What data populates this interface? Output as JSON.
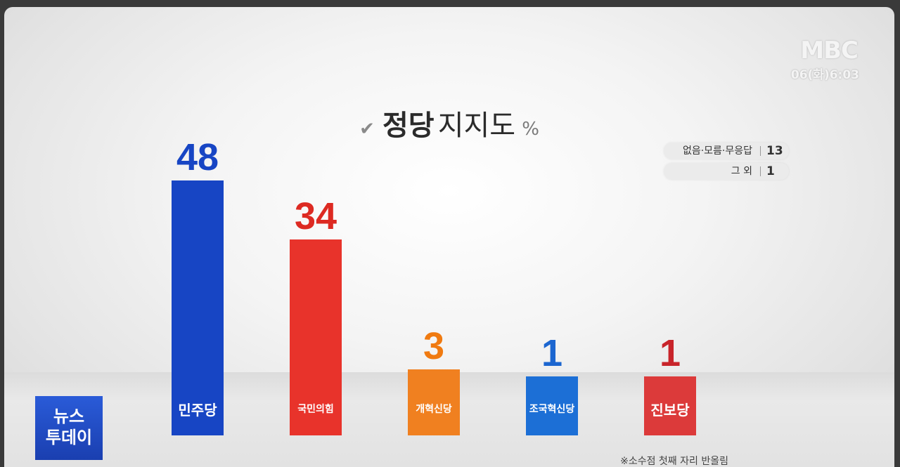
{
  "broadcaster": {
    "logo": "MBC",
    "time": "06(화)6:03"
  },
  "program_bug": {
    "line1": "뉴스",
    "line2": "투데이"
  },
  "title": {
    "bold": "정당",
    "light": "지지도",
    "unit": "%"
  },
  "legend": [
    {
      "label": "없음·모름·무응답",
      "value": "13"
    },
    {
      "label": "그 외",
      "value": "1"
    }
  ],
  "footnote": "※소수점 첫째 자리 반올림",
  "chart_data": {
    "type": "bar",
    "title": "정당 지지도",
    "unit": "%",
    "categories": [
      "민주당",
      "국민의힘",
      "개혁신당",
      "조국혁신당",
      "진보당"
    ],
    "values": [
      48,
      34,
      3,
      1,
      1
    ],
    "value_labels": [
      "48",
      "34",
      "3",
      "1",
      "1"
    ],
    "colors": [
      "#1745c4",
      "#e8332b",
      "#f08020",
      "#1c6fd6",
      "#dc3a3a"
    ],
    "label_colors": [
      "#1745c4",
      "#dd2a22",
      "#f07a10",
      "#1c66d0",
      "#c8242a"
    ],
    "extra": [
      {
        "label": "없음·모름·무응답",
        "value": 13
      },
      {
        "label": "그 외",
        "value": 1
      }
    ]
  }
}
